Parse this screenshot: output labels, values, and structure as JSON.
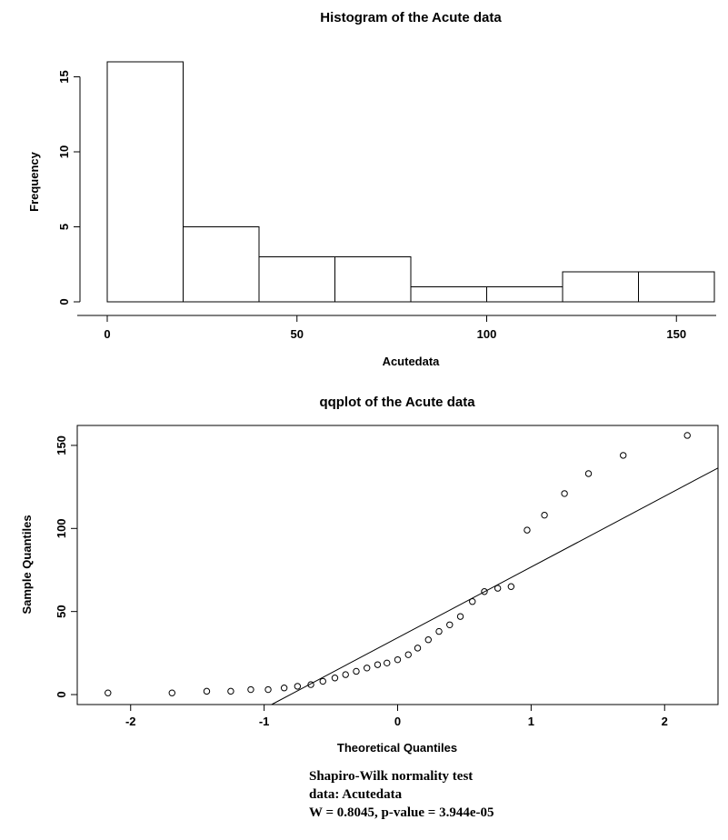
{
  "page": {
    "background": "#ffffff",
    "foreground": "#000000"
  },
  "stats": {
    "line1": "Shapiro-Wilk normality test",
    "line2": "data: Acutedata",
    "line3": "W = 0.8045, p-value = 3.944e-05"
  },
  "chart_data": [
    {
      "type": "bar",
      "subtype": "histogram",
      "title": "Histogram of the Acute data",
      "xlabel": "Acutedata",
      "ylabel": "Frequency",
      "bin_edges": [
        0,
        20,
        40,
        60,
        80,
        100,
        120,
        140,
        160
      ],
      "counts": [
        16,
        5,
        3,
        3,
        1,
        1,
        2,
        2
      ],
      "xticks": [
        0,
        50,
        100,
        150
      ],
      "yticks": [
        0,
        5,
        10,
        15
      ],
      "xlim": [
        0,
        160
      ],
      "ylim": [
        0,
        16
      ],
      "grid": false,
      "bar_fill": "#ffffff",
      "bar_stroke": "#000000"
    },
    {
      "type": "scatter",
      "subtype": "qqplot",
      "title": "qqplot of the Acute data",
      "xlabel": "Theoretical Quantiles",
      "ylabel": "Sample Quantiles",
      "xticks": [
        -2,
        -1,
        0,
        1,
        2
      ],
      "yticks": [
        0,
        50,
        100,
        150
      ],
      "xlim": [
        -2.4,
        2.4
      ],
      "ylim": [
        -6,
        162
      ],
      "grid": false,
      "marker": "open-circle",
      "points": [
        [
          -2.17,
          1
        ],
        [
          -1.69,
          1
        ],
        [
          -1.43,
          2
        ],
        [
          -1.25,
          2
        ],
        [
          -1.1,
          3
        ],
        [
          -0.97,
          3
        ],
        [
          -0.85,
          4
        ],
        [
          -0.75,
          5
        ],
        [
          -0.65,
          6
        ],
        [
          -0.56,
          8
        ],
        [
          -0.47,
          10
        ],
        [
          -0.39,
          12
        ],
        [
          -0.31,
          14
        ],
        [
          -0.23,
          16
        ],
        [
          -0.15,
          18
        ],
        [
          -0.08,
          19
        ],
        [
          0,
          21
        ],
        [
          0.08,
          24
        ],
        [
          0.15,
          28
        ],
        [
          0.23,
          33
        ],
        [
          0.31,
          38
        ],
        [
          0.39,
          42
        ],
        [
          0.47,
          47
        ],
        [
          0.56,
          56
        ],
        [
          0.65,
          62
        ],
        [
          0.75,
          64
        ],
        [
          0.85,
          65
        ],
        [
          0.97,
          99
        ],
        [
          1.1,
          108
        ],
        [
          1.25,
          121
        ],
        [
          1.43,
          133
        ],
        [
          1.69,
          144
        ],
        [
          2.17,
          156
        ]
      ],
      "qqline": {
        "x1": -0.944,
        "y1": -6,
        "x2": 2.4,
        "y2": 136.4
      }
    }
  ]
}
